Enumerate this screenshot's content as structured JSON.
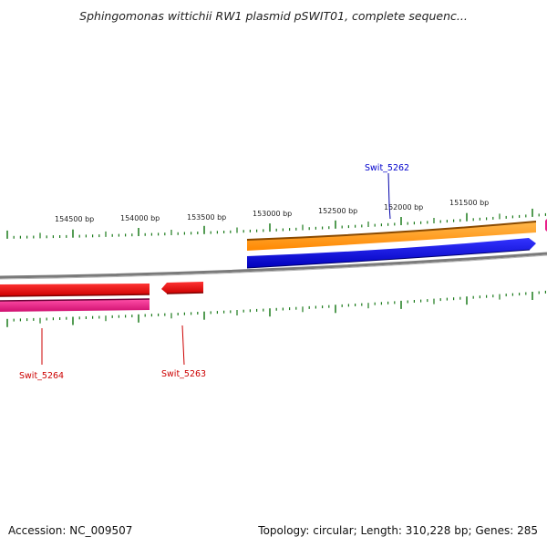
{
  "title": "Sphingomonas wittichii RW1 plasmid pSWIT01, complete sequenc...",
  "footer": {
    "accession": "Accession: NC_009507",
    "summary": "Topology: circular; Length: 310,228 bp; Genes: 285"
  },
  "map": {
    "bp_labels": [
      "154500 bp",
      "154000 bp",
      "153500 bp",
      "153000 bp",
      "152500 bp",
      "152000 bp",
      "151500 bp"
    ],
    "genes": [
      {
        "name": "Swit_5262",
        "color": "#0000cc"
      },
      {
        "name": "Swit_5264",
        "color": "#cc0000"
      },
      {
        "name": "Swit_5263",
        "color": "#cc0000"
      }
    ],
    "colors": {
      "backbone": "#808080",
      "ticks": "#1a7a1a",
      "orange_feature": "#ff9900",
      "blue_feature": "#0000dd",
      "red_feature": "#ee0000",
      "magenta_feature": "#e8208a"
    }
  }
}
